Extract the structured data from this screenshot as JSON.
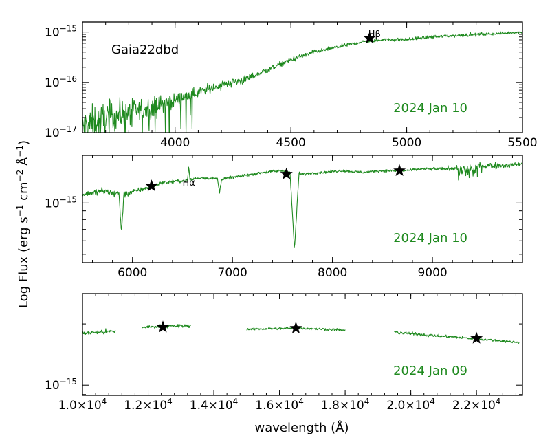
{
  "chart_data": {
    "type": "line",
    "ylabel_main": "Log Flux (erg s",
    "ylabel_sup1": "−1",
    "ylabel_mid": " cm",
    "ylabel_sup2": "−2",
    "ylabel_ang": " Å",
    "ylabel_sup3": "−1",
    "ylabel_end": ")",
    "xlabel": "wavelength (Å)",
    "color": "#1f8a1f",
    "panels": [
      {
        "object": "Gaia22dbd",
        "date": "2024 Jan 10",
        "xlim": [
          3600,
          5500
        ],
        "ylim_log": [
          -17,
          -14.8
        ],
        "xticks": [
          4000,
          4500,
          5000,
          5500
        ],
        "xtick_labels": [
          "4000",
          "4500",
          "5000",
          "5500"
        ],
        "yticks_log": [
          -17,
          -16,
          -15
        ],
        "ytick_labels": [
          {
            "base": "10",
            "exp": "−17"
          },
          {
            "base": "10",
            "exp": "−16"
          },
          {
            "base": "10",
            "exp": "−15"
          }
        ],
        "lines": [
          {
            "label": "Hβ",
            "x": 4861
          }
        ],
        "stars": [
          {
            "x": 4840,
            "y": -15.12
          }
        ],
        "series": [
          {
            "x": [
              3600,
              3700,
              3800,
              3900,
              4000,
              4100,
              4200,
              4300,
              4400,
              4500,
              4600,
              4700,
              4800,
              4900,
              5000,
              5100,
              5200,
              5300,
              5400,
              5500
            ],
            "y": [
              -16.9,
              -16.7,
              -16.6,
              -16.5,
              -16.35,
              -16.2,
              -16.05,
              -15.95,
              -15.75,
              -15.55,
              -15.4,
              -15.3,
              -15.2,
              -15.15,
              -15.15,
              -15.1,
              -15.07,
              -15.05,
              -15.03,
              -15.0
            ],
            "noise": [
              0.35,
              0.3,
              0.25,
              0.2,
              0.13,
              0.1,
              0.09,
              0.08,
              0.06,
              0.05,
              0.04,
              0.035,
              0.03,
              0.03,
              0.03,
              0.035,
              0.03,
              0.03,
              0.025,
              0.02
            ]
          }
        ]
      },
      {
        "date": "2024 Jan 10",
        "xlim": [
          5500,
          9900
        ],
        "ylim_log": [
          -15.35,
          -14.72
        ],
        "xticks": [
          6000,
          7000,
          8000,
          9000
        ],
        "xtick_labels": [
          "6000",
          "7000",
          "8000",
          "9000"
        ],
        "yticks_log": [
          -15
        ],
        "ytick_labels": [
          {
            "base": "10",
            "exp": "−15"
          }
        ],
        "lines": [
          {
            "label": "Hα",
            "x": 6563
          }
        ],
        "stars": [
          {
            "x": 6190,
            "y": -14.9
          },
          {
            "x": 7540,
            "y": -14.83
          },
          {
            "x": 8670,
            "y": -14.81
          }
        ],
        "series": [
          {
            "x": [
              5500,
              5700,
              5900,
              6100,
              6300,
              6500,
              6700,
              6900,
              7100,
              7300,
              7500,
              7700,
              7900,
              8100,
              8300,
              8500,
              8700,
              8900,
              9100,
              9300,
              9500,
              9700,
              9900
            ],
            "y": [
              -14.95,
              -14.93,
              -14.95,
              -14.92,
              -14.88,
              -14.87,
              -14.85,
              -14.86,
              -14.84,
              -14.82,
              -14.81,
              -14.83,
              -14.82,
              -14.81,
              -14.82,
              -14.81,
              -14.81,
              -14.8,
              -14.8,
              -14.79,
              -14.78,
              -14.78,
              -14.77
            ],
            "noise": [
              0.015,
              0.02,
              0.02,
              0.012,
              0.01,
              0.01,
              0.008,
              0.008,
              0.008,
              0.008,
              0.008,
              0.008,
              0.007,
              0.007,
              0.007,
              0.007,
              0.007,
              0.008,
              0.01,
              0.02,
              0.025,
              0.015,
              0.01
            ]
          }
        ]
      },
      {
        "date": "2024 Jan 09",
        "xlim": [
          10000,
          23400
        ],
        "ylim_log": [
          -15.05,
          -14.55
        ],
        "xticks": [
          10000,
          12000,
          14000,
          16000,
          18000,
          20000,
          22000
        ],
        "xtick_labels": [
          {
            "m": "1.0",
            "e": "4"
          },
          {
            "m": "1.2",
            "e": "4"
          },
          {
            "m": "1.4",
            "e": "4"
          },
          {
            "m": "1.6",
            "e": "4"
          },
          {
            "m": "1.8",
            "e": "4"
          },
          {
            "m": "2.0",
            "e": "4"
          },
          {
            "m": "2.2",
            "e": "4"
          }
        ],
        "yticks_log": [
          -15
        ],
        "ytick_labels": [
          {
            "base": "10",
            "exp": "−15"
          }
        ],
        "lines": [],
        "stars": [
          {
            "x": 12450,
            "y": -14.715
          },
          {
            "x": 16500,
            "y": -14.72
          },
          {
            "x": 22000,
            "y": -14.77
          }
        ],
        "series": [
          {
            "x": [
              10000,
              10500,
              11000
            ],
            "y": [
              -14.745,
              -14.74,
              -14.735
            ],
            "noise": [
              0.008,
              0.01,
              0.012
            ]
          },
          {
            "x": [
              11800,
              12300,
              12800,
              13300
            ],
            "y": [
              -14.715,
              -14.712,
              -14.71,
              -14.708
            ],
            "noise": [
              0.008,
              0.008,
              0.008,
              0.008
            ]
          },
          {
            "x": [
              15000,
              15800,
              16600,
              17400,
              18000
            ],
            "y": [
              -14.725,
              -14.722,
              -14.72,
              -14.725,
              -14.73
            ],
            "noise": [
              0.006,
              0.006,
              0.006,
              0.006,
              0.006
            ]
          },
          {
            "x": [
              19500,
              20200,
              21000,
              21800,
              22600,
              23300
            ],
            "y": [
              -14.74,
              -14.75,
              -14.76,
              -14.77,
              -14.78,
              -14.79
            ],
            "noise": [
              0.008,
              0.007,
              0.006,
              0.006,
              0.006,
              0.006
            ]
          }
        ]
      }
    ]
  }
}
